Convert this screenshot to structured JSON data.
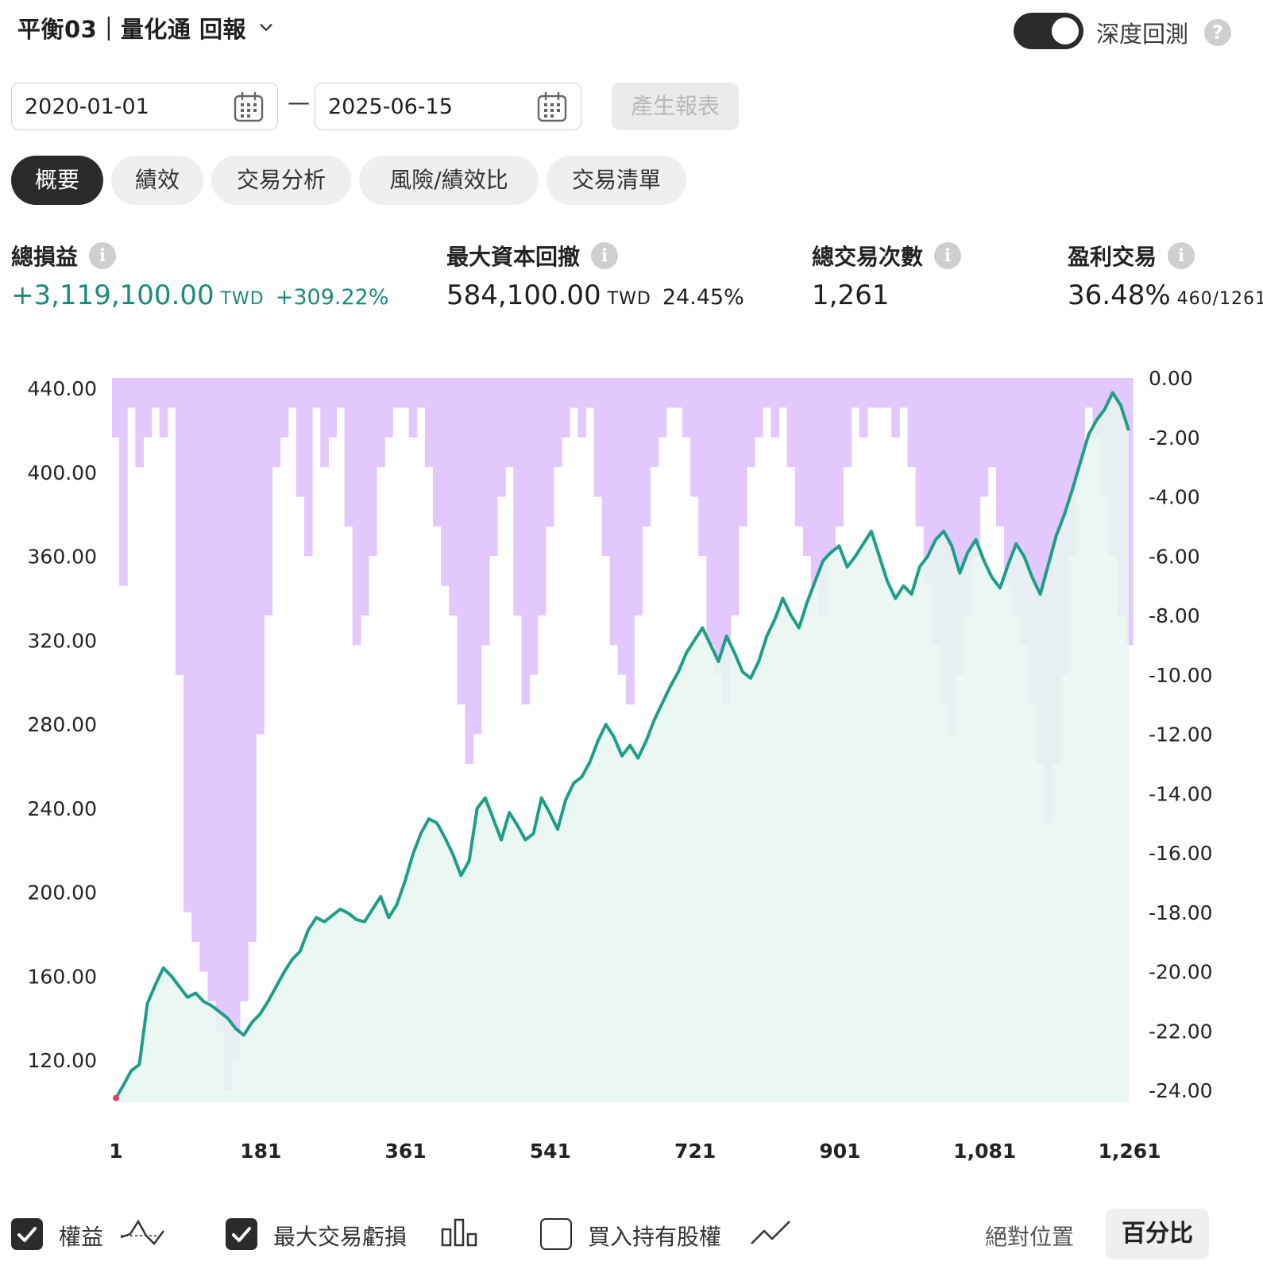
{
  "header": {
    "title": "平衡03｜量化通 回報",
    "deep_label": "深度回測",
    "help_glyph": "?"
  },
  "dates": {
    "start": "2020-01-01",
    "separator": "—",
    "end": "2025-06-15"
  },
  "generate_label": "產生報表",
  "tabs": [
    {
      "label": "概要",
      "active": true
    },
    {
      "label": "績效",
      "active": false
    },
    {
      "label": "交易分析",
      "active": false
    },
    {
      "label": "風險/績效比",
      "active": false
    },
    {
      "label": "交易清單",
      "active": false
    }
  ],
  "stats": {
    "info_glyph": "i",
    "pnl": {
      "label": "總損益",
      "value": "+3,119,100.00",
      "unit": "TWD",
      "pct": "+309.22%"
    },
    "mdd": {
      "label": "最大資本回撤",
      "value": "584,100.00",
      "unit": "TWD",
      "pct": "24.45%"
    },
    "trades": {
      "label": "總交易次數",
      "value": "1,261"
    },
    "win": {
      "label": "盈利交易",
      "value": "36.48%",
      "ratio": "460/1261"
    }
  },
  "legend": {
    "equity": "權益",
    "max_loss": "最大交易虧損",
    "buy_hold": "買入持有股權",
    "absolute": "絕對位置",
    "percent": "百分比"
  },
  "icons": {
    "chevron": "chevron-down-icon",
    "calendar": "calendar-icon",
    "check": "check-icon",
    "equity_legend": "equity-line-icon",
    "bars_legend": "bar-chart-icon",
    "line_legend": "trend-line-icon"
  },
  "colors": {
    "equity_line": "#1f9e86",
    "equity_fill": "#e7f6f1",
    "drawdown_fill": "#e2c8fd",
    "accent_dark": "#2b2b2b"
  },
  "chart_data": {
    "type": "area",
    "x_ticks": [
      "1",
      "181",
      "361",
      "541",
      "721",
      "901",
      "1,081",
      "1,261"
    ],
    "x_range": [
      1,
      1261
    ],
    "y_left_ticks": [
      "440.00",
      "400.00",
      "360.00",
      "320.00",
      "280.00",
      "240.00",
      "200.00",
      "160.00",
      "120.00"
    ],
    "y_left_range": [
      100,
      445
    ],
    "y_right_ticks": [
      "0.00",
      "-2.00",
      "-4.00",
      "-6.00",
      "-8.00",
      "-10.00",
      "-12.00",
      "-14.00",
      "-16.00",
      "-18.00",
      "-20.00",
      "-22.00",
      "-24.00"
    ],
    "y_right_range": [
      -24.4,
      0
    ],
    "series": [
      {
        "axis": "left",
        "x": [
          1,
          10,
          20,
          30,
          40,
          50,
          60,
          70,
          80,
          90,
          100,
          110,
          120,
          130,
          140,
          150,
          160,
          170,
          180,
          190,
          200,
          210,
          220,
          230,
          240,
          250,
          260,
          270,
          280,
          290,
          300,
          310,
          320,
          330,
          340,
          350,
          360,
          370,
          380,
          390,
          400,
          410,
          420,
          430,
          440,
          450,
          460,
          470,
          480,
          490,
          500,
          510,
          520,
          530,
          540,
          550,
          560,
          570,
          580,
          590,
          600,
          610,
          620,
          630,
          640,
          650,
          660,
          670,
          680,
          690,
          700,
          710,
          720,
          730,
          740,
          750,
          760,
          770,
          780,
          790,
          800,
          810,
          820,
          830,
          840,
          850,
          860,
          870,
          880,
          890,
          900,
          910,
          920,
          930,
          940,
          950,
          960,
          970,
          980,
          990,
          1000,
          1010,
          1020,
          1030,
          1040,
          1050,
          1060,
          1070,
          1080,
          1090,
          1100,
          1110,
          1120,
          1130,
          1140,
          1150,
          1160,
          1170,
          1180,
          1190,
          1200,
          1210,
          1220,
          1230,
          1240,
          1250,
          1260
        ],
        "y": [
          102,
          108,
          115,
          118,
          147,
          156,
          164,
          160,
          155,
          150,
          152,
          148,
          146,
          143,
          140,
          135,
          132,
          138,
          142,
          148,
          155,
          162,
          168,
          172,
          182,
          188,
          186,
          189,
          192,
          190,
          187,
          186,
          192,
          198,
          188,
          194,
          205,
          218,
          228,
          235,
          233,
          226,
          218,
          208,
          215,
          240,
          245,
          235,
          225,
          238,
          232,
          225,
          228,
          245,
          238,
          230,
          244,
          252,
          255,
          262,
          272,
          280,
          274,
          265,
          270,
          264,
          272,
          282,
          290,
          298,
          305,
          314,
          320,
          326,
          318,
          310,
          322,
          314,
          305,
          302,
          310,
          322,
          330,
          340,
          332,
          326,
          338,
          348,
          358,
          362,
          365,
          355,
          360,
          366,
          372,
          360,
          348,
          340,
          346,
          342,
          355,
          360,
          368,
          372,
          365,
          352,
          362,
          368,
          358,
          350,
          345,
          356,
          366,
          360,
          350,
          342,
          356,
          370,
          380,
          392,
          405,
          418,
          425,
          430,
          438,
          432,
          420
        ]
      },
      {
        "axis": "right",
        "x": [
          1,
          10,
          20,
          30,
          40,
          50,
          60,
          70,
          80,
          90,
          100,
          110,
          120,
          130,
          140,
          150,
          160,
          170,
          180,
          190,
          200,
          210,
          220,
          230,
          240,
          250,
          260,
          270,
          280,
          290,
          300,
          310,
          320,
          330,
          340,
          350,
          360,
          370,
          380,
          390,
          400,
          410,
          420,
          430,
          440,
          450,
          460,
          470,
          480,
          490,
          500,
          510,
          520,
          530,
          540,
          550,
          560,
          570,
          580,
          590,
          600,
          610,
          620,
          630,
          640,
          650,
          660,
          670,
          680,
          690,
          700,
          710,
          720,
          730,
          740,
          750,
          760,
          770,
          780,
          790,
          800,
          810,
          820,
          830,
          840,
          850,
          860,
          870,
          880,
          890,
          900,
          910,
          920,
          930,
          940,
          950,
          960,
          970,
          980,
          990,
          1000,
          1010,
          1020,
          1030,
          1040,
          1050,
          1060,
          1070,
          1080,
          1090,
          1100,
          1110,
          1120,
          1130,
          1140,
          1150,
          1160,
          1170,
          1180,
          1190,
          1200,
          1210,
          1220,
          1230,
          1240,
          1250,
          1260
        ],
        "y": [
          -2,
          -7,
          -1,
          -3,
          -2,
          -1,
          -2,
          -1,
          -10,
          -18,
          -19,
          -20,
          -21,
          -22,
          -24,
          -23,
          -21,
          -19,
          -12,
          -8,
          -3,
          -2,
          -1,
          -4,
          -6,
          -1,
          -3,
          -2,
          -1,
          -5,
          -9,
          -8,
          -6,
          -3,
          -2,
          -1,
          -1,
          -2,
          -1,
          -3,
          -5,
          -7,
          -8,
          -11,
          -13,
          -12,
          -9,
          -6,
          -4,
          -3,
          -8,
          -11,
          -10,
          -8,
          -5,
          -3,
          -2,
          -1,
          -2,
          -1,
          -4,
          -6,
          -9,
          -10,
          -11,
          -8,
          -5,
          -3,
          -2,
          -1,
          -1,
          -2,
          -4,
          -6,
          -9,
          -10,
          -11,
          -8,
          -5,
          -3,
          -2,
          -1,
          -2,
          -1,
          -3,
          -5,
          -6,
          -7,
          -8,
          -6,
          -5,
          -3,
          -1,
          -2,
          -1,
          -1,
          -1,
          -2,
          -1,
          -3,
          -5,
          -7,
          -9,
          -11,
          -12,
          -10,
          -8,
          -6,
          -4,
          -3,
          -5,
          -7,
          -8,
          -9,
          -11,
          -13,
          -15,
          -13,
          -10,
          -6,
          -3,
          -1,
          -2,
          -4,
          -6,
          -8,
          -9
        ]
      }
    ]
  }
}
